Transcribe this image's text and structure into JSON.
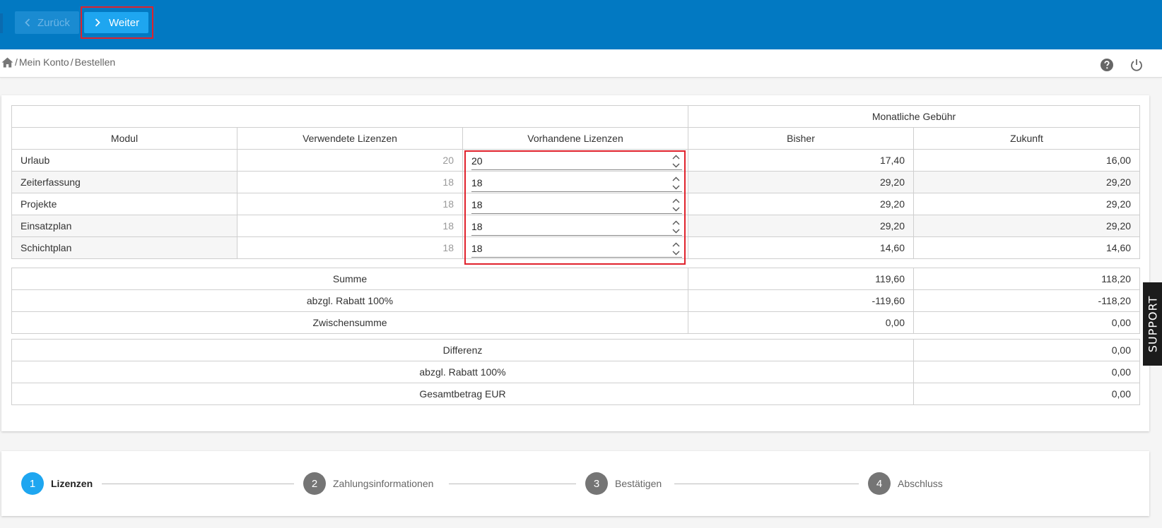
{
  "toolbar": {
    "back_label": "Zurück",
    "next_label": "Weiter"
  },
  "breadcrumb": {
    "sep": "/",
    "items": [
      "Mein Konto",
      "Bestellen"
    ]
  },
  "table": {
    "group_header": "Monatliche Gebühr",
    "headers": {
      "modul": "Modul",
      "used": "Verwendete Lizenzen",
      "available": "Vorhandene Lizenzen",
      "before": "Bisher",
      "future": "Zukunft"
    },
    "rows": [
      {
        "name": "Urlaub",
        "used": "20",
        "available": "20",
        "before": "17,40",
        "future": "16,00"
      },
      {
        "name": "Zeiterfassung",
        "used": "18",
        "available": "18",
        "before": "29,20",
        "future": "29,20"
      },
      {
        "name": "Projekte",
        "used": "18",
        "available": "18",
        "before": "29,20",
        "future": "29,20"
      },
      {
        "name": "Einsatzplan",
        "used": "18",
        "available": "18",
        "before": "29,20",
        "future": "29,20"
      },
      {
        "name": "Schichtplan",
        "used": "18",
        "available": "18",
        "before": "14,60",
        "future": "14,60"
      }
    ],
    "totals": [
      {
        "label": "Summe",
        "before": "119,60",
        "future": "118,20"
      },
      {
        "label": "abzgl. Rabatt 100%",
        "before": "-119,60",
        "future": "-118,20"
      },
      {
        "label": "Zwischensumme",
        "before": "0,00",
        "future": "0,00"
      }
    ],
    "summary": [
      {
        "label": "Differenz",
        "value": "0,00"
      },
      {
        "label": "abzgl. Rabatt 100%",
        "value": "0,00"
      },
      {
        "label": "Gesamtbetrag EUR",
        "value": "0,00"
      }
    ]
  },
  "support_label": "SUPPORT",
  "steps": [
    {
      "num": "1",
      "label": "Lizenzen"
    },
    {
      "num": "2",
      "label": "Zahlungsinformationen"
    },
    {
      "num": "3",
      "label": "Bestätigen"
    },
    {
      "num": "4",
      "label": "Abschluss"
    }
  ]
}
